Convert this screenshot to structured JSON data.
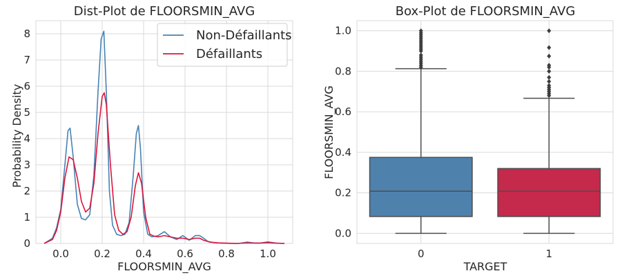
{
  "chart_data": [
    {
      "type": "line",
      "title": "Dist-Plot de FLOORSMIN_AVG",
      "xlabel": "FLOORSMIN_AVG",
      "ylabel": "Probability Density",
      "xlim": [
        -0.12,
        1.12
      ],
      "ylim": [
        0,
        8.5
      ],
      "x_ticks": [
        "0.0",
        "0.2",
        "0.4",
        "0.6",
        "0.8",
        "1.0"
      ],
      "x_tick_values": [
        0.0,
        0.2,
        0.4,
        0.6,
        0.8,
        1.0
      ],
      "y_ticks": [
        "0",
        "1",
        "2",
        "3",
        "4",
        "5",
        "6",
        "7",
        "8"
      ],
      "y_tick_values": [
        0,
        1,
        2,
        3,
        4,
        5,
        6,
        7,
        8
      ],
      "grid": true,
      "legend_position": "top-right",
      "series": [
        {
          "name": "Non-Défaillants",
          "color": "#4682b4",
          "x": [
            -0.08,
            -0.04,
            -0.02,
            0.0,
            0.02,
            0.035,
            0.045,
            0.06,
            0.08,
            0.1,
            0.12,
            0.14,
            0.16,
            0.18,
            0.195,
            0.208,
            0.22,
            0.235,
            0.25,
            0.27,
            0.29,
            0.31,
            0.33,
            0.35,
            0.365,
            0.375,
            0.385,
            0.4,
            0.42,
            0.44,
            0.47,
            0.5,
            0.53,
            0.56,
            0.59,
            0.62,
            0.65,
            0.67,
            0.69,
            0.71,
            0.74,
            0.78,
            0.82,
            0.86,
            0.9,
            0.93,
            0.96,
            1.0,
            1.04,
            1.08
          ],
          "y": [
            0.0,
            0.2,
            0.6,
            1.3,
            3.0,
            4.3,
            4.4,
            3.3,
            1.5,
            0.95,
            0.9,
            1.1,
            2.6,
            5.8,
            7.8,
            8.1,
            5.8,
            2.0,
            0.7,
            0.35,
            0.3,
            0.35,
            0.8,
            2.6,
            4.2,
            4.5,
            3.6,
            1.2,
            0.35,
            0.25,
            0.3,
            0.45,
            0.25,
            0.15,
            0.3,
            0.12,
            0.3,
            0.3,
            0.2,
            0.08,
            0.03,
            0.01,
            0.0,
            0.0,
            0.05,
            0.02,
            0.01,
            0.06,
            0.01,
            0.0
          ]
        },
        {
          "name": "Défaillants",
          "color": "#dc143c",
          "x": [
            -0.08,
            -0.04,
            -0.02,
            0.0,
            0.02,
            0.04,
            0.06,
            0.08,
            0.1,
            0.12,
            0.14,
            0.16,
            0.18,
            0.2,
            0.21,
            0.22,
            0.24,
            0.26,
            0.28,
            0.3,
            0.32,
            0.34,
            0.36,
            0.375,
            0.39,
            0.41,
            0.43,
            0.45,
            0.47,
            0.5,
            0.53,
            0.56,
            0.59,
            0.62,
            0.65,
            0.67,
            0.69,
            0.72,
            0.76,
            0.8,
            0.85,
            0.9,
            0.95,
            1.0,
            1.04,
            1.08
          ],
          "y": [
            0.0,
            0.15,
            0.5,
            1.2,
            2.5,
            3.3,
            3.2,
            2.5,
            1.6,
            1.2,
            1.35,
            2.3,
            4.2,
            5.6,
            5.75,
            5.3,
            3.0,
            1.1,
            0.5,
            0.35,
            0.45,
            1.0,
            2.2,
            2.7,
            2.3,
            1.0,
            0.35,
            0.28,
            0.25,
            0.3,
            0.25,
            0.2,
            0.2,
            0.15,
            0.2,
            0.2,
            0.12,
            0.05,
            0.02,
            0.01,
            0.0,
            0.02,
            0.01,
            0.03,
            0.01,
            0.0
          ]
        }
      ]
    },
    {
      "type": "box",
      "title": "Box-Plot de FLOORSMIN_AVG",
      "xlabel": "TARGET",
      "ylabel": "FLOORSMIN_AVG",
      "categories": [
        "0",
        "1"
      ],
      "ylim": [
        -0.05,
        1.05
      ],
      "y_ticks": [
        "0.0",
        "0.2",
        "0.4",
        "0.6",
        "0.8",
        "1.0"
      ],
      "y_tick_values": [
        0.0,
        0.2,
        0.4,
        0.6,
        0.8,
        1.0
      ],
      "grid": true,
      "boxes": [
        {
          "category": "0",
          "color": "#4f81ad",
          "min": 0.0,
          "q1": 0.083,
          "median": 0.208,
          "q3": 0.375,
          "max": 0.813,
          "outliers": [
            0.82,
            0.83,
            0.84,
            0.85,
            0.86,
            0.87,
            0.88,
            0.9,
            0.91,
            0.92,
            0.93,
            0.94,
            0.95,
            0.96,
            0.97,
            0.98,
            0.99,
            1.0
          ]
        },
        {
          "category": "1",
          "color": "#c5294b",
          "min": 0.0,
          "q1": 0.083,
          "median": 0.208,
          "q3": 0.32,
          "max": 0.667,
          "outliers": [
            0.68,
            0.69,
            0.7,
            0.71,
            0.72,
            0.73,
            0.75,
            0.77,
            0.8,
            0.82,
            0.83,
            0.875,
            0.917,
            1.0
          ]
        }
      ]
    }
  ]
}
